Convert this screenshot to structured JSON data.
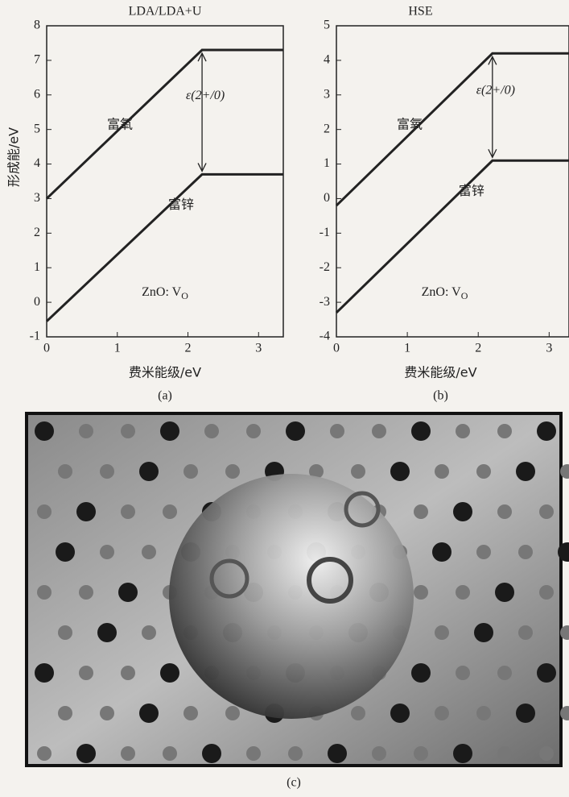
{
  "chart_data": [
    {
      "type": "line",
      "title": "LDA/LDA+U",
      "x_label": "费米能级/eV",
      "y_label": "形成能/eV",
      "x": [
        0,
        2.2,
        3.35
      ],
      "series": [
        {
          "name": "富氧",
          "color": "#222222",
          "values": [
            3.0,
            7.3,
            7.3
          ]
        },
        {
          "name": "富锌",
          "color": "#222222",
          "values": [
            -0.55,
            3.7,
            3.7
          ]
        }
      ],
      "transition_label": "ε(2+/0)",
      "defect_label": {
        "text": "ZnO: V",
        "subscript": "O"
      },
      "panel_label": "(a)",
      "xlim": [
        0,
        3.35
      ],
      "xticks": [
        0,
        1,
        2,
        3
      ],
      "ylim": [
        -1,
        8
      ],
      "yticks": [
        -1,
        0,
        1,
        2,
        3,
        4,
        5,
        6,
        7,
        8
      ]
    },
    {
      "type": "line",
      "title": "HSE",
      "x_label": "费米能级/eV",
      "x": [
        0,
        2.2,
        3.28
      ],
      "series": [
        {
          "name": "富氧",
          "color": "#222222",
          "values": [
            -0.2,
            4.2,
            4.2
          ]
        },
        {
          "name": "富锌",
          "color": "#222222",
          "values": [
            -3.3,
            1.1,
            1.1
          ]
        }
      ],
      "transition_label": "ε(2+/0)",
      "defect_label": {
        "text": "ZnO: V",
        "subscript": "O"
      },
      "panel_label": "(b)",
      "xlim": [
        0,
        3.28
      ],
      "xticks": [
        0,
        1,
        2,
        3
      ],
      "ylim": [
        -4,
        5
      ],
      "yticks": [
        -4,
        -3,
        -2,
        -1,
        0,
        1,
        2,
        3,
        4,
        5
      ]
    }
  ],
  "panel_c": {
    "label": "(c)"
  }
}
